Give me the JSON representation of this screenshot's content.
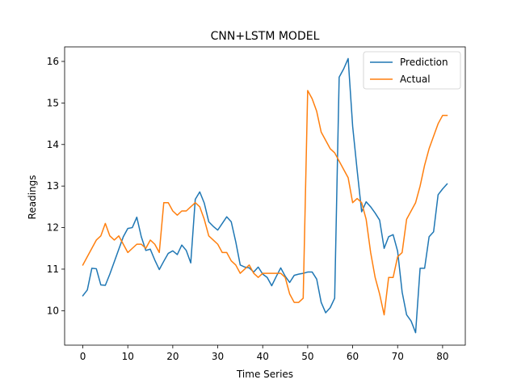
{
  "chart_data": {
    "type": "line",
    "title": "CNN+LSTM MODEL",
    "xlabel": "Time Series",
    "ylabel": "Readings",
    "xlim": [
      -4.05,
      85.05
    ],
    "ylim": [
      9.17,
      16.35
    ],
    "xticks": [
      0,
      10,
      20,
      30,
      40,
      50,
      60,
      70,
      80
    ],
    "yticks": [
      10,
      11,
      12,
      13,
      14,
      15,
      16
    ],
    "grid": false,
    "legend": "top-right",
    "series": [
      {
        "name": "Prediction",
        "color": "#1f77b4",
        "values": [
          10.36,
          10.5,
          11.02,
          11.01,
          10.62,
          10.61,
          10.88,
          11.18,
          11.48,
          11.78,
          11.98,
          12.0,
          12.25,
          11.78,
          11.45,
          11.48,
          11.22,
          10.99,
          11.19,
          11.38,
          11.44,
          11.35,
          11.58,
          11.45,
          11.15,
          12.68,
          12.86,
          12.59,
          12.14,
          12.03,
          11.94,
          12.1,
          12.26,
          12.14,
          11.66,
          11.1,
          11.05,
          11.03,
          10.93,
          11.05,
          10.88,
          10.8,
          10.6,
          10.82,
          11.03,
          10.83,
          10.68,
          10.85,
          10.88,
          10.9,
          10.93,
          10.93,
          10.76,
          10.2,
          9.95,
          10.07,
          10.3,
          15.62,
          15.82,
          16.07,
          14.44,
          13.38,
          12.38,
          12.62,
          12.5,
          12.35,
          12.18,
          11.5,
          11.78,
          11.83,
          11.43,
          10.45,
          9.9,
          9.75,
          9.47,
          11.02,
          11.02,
          11.78,
          11.9,
          12.79,
          12.93,
          13.05
        ]
      },
      {
        "name": "Actual",
        "color": "#ff7f0e",
        "values": [
          11.1,
          11.3,
          11.5,
          11.7,
          11.8,
          12.1,
          11.8,
          11.7,
          11.8,
          11.6,
          11.4,
          11.5,
          11.6,
          11.6,
          11.5,
          11.7,
          11.6,
          11.4,
          12.6,
          12.6,
          12.4,
          12.3,
          12.4,
          12.4,
          12.5,
          12.6,
          12.5,
          12.2,
          11.8,
          11.7,
          11.6,
          11.4,
          11.4,
          11.2,
          11.1,
          10.9,
          11.0,
          11.1,
          10.9,
          10.8,
          10.9,
          10.9,
          10.9,
          10.9,
          10.9,
          10.8,
          10.4,
          10.2,
          10.2,
          10.3,
          15.3,
          15.1,
          14.8,
          14.3,
          14.1,
          13.9,
          13.8,
          13.6,
          13.4,
          13.2,
          12.6,
          12.7,
          12.6,
          12.2,
          11.4,
          10.8,
          10.4,
          9.9,
          10.8,
          10.8,
          11.3,
          11.4,
          12.2,
          12.4,
          12.6,
          13.0,
          13.5,
          13.9,
          14.2,
          14.5,
          14.7,
          14.7
        ]
      }
    ]
  }
}
